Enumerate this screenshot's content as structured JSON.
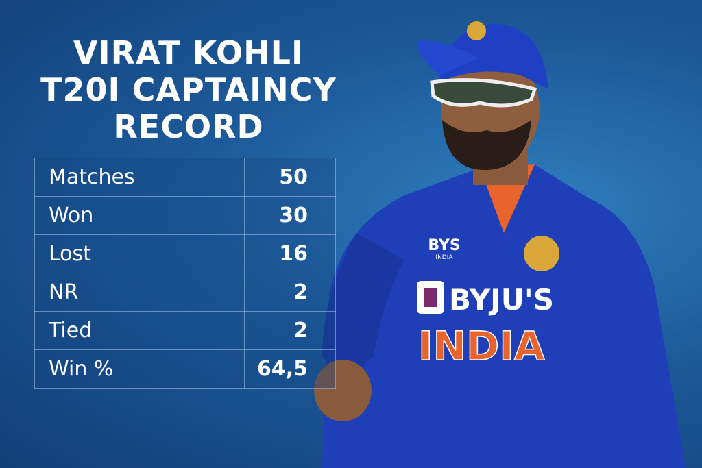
{
  "title_lines": [
    "VIRAT KOHLI",
    "T20I CAPTAINCY",
    "RECORD"
  ],
  "table": {
    "rows": [
      [
        "Matches",
        "50"
      ],
      [
        "Won",
        "30"
      ],
      [
        "Lost",
        "16"
      ],
      [
        "NR",
        "2"
      ],
      [
        "Tied",
        "2"
      ],
      [
        "Win %",
        "64,5"
      ]
    ]
  },
  "jersey": {
    "kit_maker": "BYS",
    "kit_maker_sub": "INDIA",
    "sponsor": "BYJU'S",
    "team": "INDIA"
  }
}
